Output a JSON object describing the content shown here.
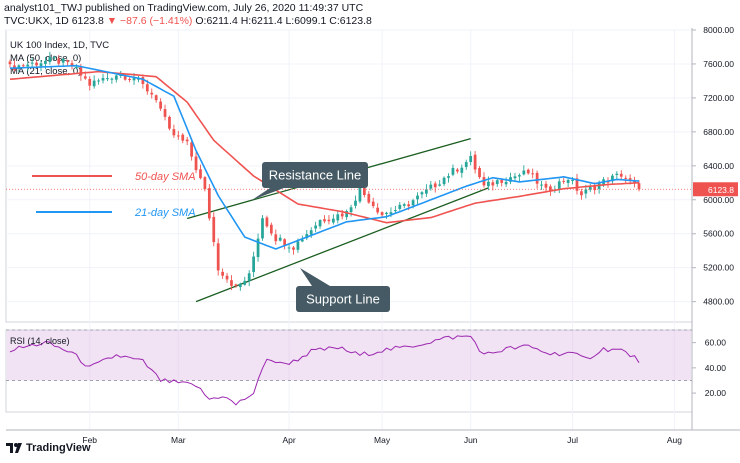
{
  "header": {
    "published_line": "analyst101_TWJ published on TradingView.com, July 26, 2020 11:49:37 UTC",
    "symbol": "TVC:UKX, 1D",
    "last": "6123.8",
    "change": "▼ −87.6 (−1.41%)",
    "ohlc": "O:6211.4 H:6211.4 L:6099.1 C:6123.8"
  },
  "legend": {
    "title": "UK 100 Index, 1D, TVC",
    "ma50": "MA (50, close, 0)",
    "ma21": "MA (21, close, 0)"
  },
  "annotations": {
    "sma50": "50-day SMA",
    "sma21": "21-day SMA",
    "resistance": "Resistance Line",
    "support": "Support Line"
  },
  "price_tag": "6123.8",
  "rsi_label": "RSI (14, close)",
  "brand": "TradingView",
  "colors": {
    "up": "#26a69a",
    "down": "#ef5350",
    "ma50": "#ef5350",
    "ma21": "#2196f3",
    "rsi": "#9c27b0",
    "rsi_band": "#e1bee7",
    "channel": "#1b5e20"
  },
  "chart_data": {
    "type": "candlestick",
    "price_axis": {
      "ticks": [
        4800,
        5200,
        5600,
        6000,
        6400,
        6800,
        7200,
        7600,
        8000
      ],
      "ylim": [
        4560,
        8000
      ]
    },
    "rsi_axis": {
      "ticks": [
        20,
        40,
        60
      ],
      "ylim": [
        5,
        70
      ],
      "band": [
        30,
        70
      ]
    },
    "x_ticks": [
      "Feb",
      "Mar",
      "Apr",
      "May",
      "Jun",
      "Jul",
      "Aug"
    ],
    "x_tick_index": [
      18,
      38,
      63,
      84,
      104,
      127,
      150
    ],
    "n_bars": 143,
    "price_keypoints": [
      [
        0,
        7560
      ],
      [
        10,
        7650
      ],
      [
        14,
        7580
      ],
      [
        18,
        7360
      ],
      [
        24,
        7480
      ],
      [
        28,
        7440
      ],
      [
        33,
        7200
      ],
      [
        36,
        6800
      ],
      [
        40,
        6650
      ],
      [
        44,
        6100
      ],
      [
        47,
        5200
      ],
      [
        51,
        4960
      ],
      [
        54,
        5100
      ],
      [
        57,
        5800
      ],
      [
        60,
        5550
      ],
      [
        64,
        5450
      ],
      [
        70,
        5760
      ],
      [
        76,
        5850
      ],
      [
        79,
        6120
      ],
      [
        84,
        5830
      ],
      [
        89,
        5920
      ],
      [
        94,
        6100
      ],
      [
        99,
        6300
      ],
      [
        104,
        6480
      ],
      [
        107,
        6150
      ],
      [
        111,
        6240
      ],
      [
        117,
        6320
      ],
      [
        121,
        6100
      ],
      [
        126,
        6260
      ],
      [
        129,
        6060
      ],
      [
        133,
        6190
      ],
      [
        138,
        6300
      ],
      [
        142,
        6124
      ]
    ],
    "ma50_keypoints": [
      [
        0,
        7420
      ],
      [
        20,
        7510
      ],
      [
        33,
        7450
      ],
      [
        40,
        7150
      ],
      [
        46,
        6700
      ],
      [
        55,
        6280
      ],
      [
        65,
        5950
      ],
      [
        75,
        5860
      ],
      [
        85,
        5730
      ],
      [
        95,
        5790
      ],
      [
        105,
        5960
      ],
      [
        115,
        6040
      ],
      [
        125,
        6130
      ],
      [
        135,
        6180
      ],
      [
        142,
        6200
      ]
    ],
    "ma21_keypoints": [
      [
        0,
        7550
      ],
      [
        15,
        7580
      ],
      [
        30,
        7420
      ],
      [
        37,
        7220
      ],
      [
        42,
        6580
      ],
      [
        47,
        6050
      ],
      [
        53,
        5560
      ],
      [
        60,
        5420
      ],
      [
        68,
        5580
      ],
      [
        76,
        5740
      ],
      [
        85,
        5800
      ],
      [
        95,
        6000
      ],
      [
        103,
        6160
      ],
      [
        109,
        6260
      ],
      [
        115,
        6210
      ],
      [
        125,
        6270
      ],
      [
        132,
        6190
      ],
      [
        137,
        6240
      ],
      [
        142,
        6220
      ]
    ],
    "rsi_keypoints": [
      [
        0,
        54
      ],
      [
        8,
        60
      ],
      [
        14,
        52
      ],
      [
        18,
        40
      ],
      [
        24,
        50
      ],
      [
        30,
        45
      ],
      [
        34,
        30
      ],
      [
        38,
        28
      ],
      [
        42,
        26
      ],
      [
        45,
        15
      ],
      [
        48,
        18
      ],
      [
        51,
        11
      ],
      [
        55,
        20
      ],
      [
        58,
        48
      ],
      [
        61,
        43
      ],
      [
        64,
        45
      ],
      [
        68,
        53
      ],
      [
        74,
        56
      ],
      [
        79,
        50
      ],
      [
        84,
        54
      ],
      [
        89,
        56
      ],
      [
        94,
        60
      ],
      [
        99,
        64
      ],
      [
        104,
        65
      ],
      [
        107,
        50
      ],
      [
        112,
        55
      ],
      [
        117,
        57
      ],
      [
        122,
        51
      ],
      [
        126,
        52
      ],
      [
        130,
        47
      ],
      [
        134,
        55
      ],
      [
        138,
        54
      ],
      [
        142,
        46
      ]
    ],
    "resistance_line": [
      [
        40,
        5780
      ],
      [
        104,
        6720
      ]
    ],
    "support_line": [
      [
        42,
        4800
      ],
      [
        108,
        6140
      ]
    ]
  }
}
